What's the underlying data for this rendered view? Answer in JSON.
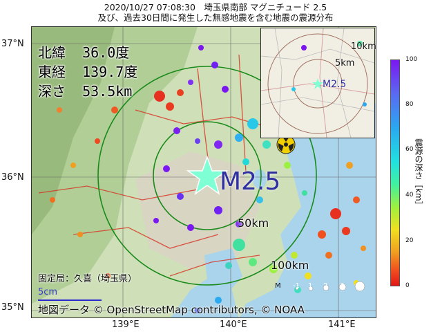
{
  "title": {
    "line1": "2020/10/27 07:08:30　埼玉県南部 マグニチュード 2.5",
    "line2": "及び、過去30日間に発生した無感地震を含む地震の震源分布"
  },
  "axes": {
    "lat_labels": [
      "37°N",
      "36°N",
      "35°N"
    ],
    "lon_labels": [
      "139°E",
      "140°E",
      "141°E"
    ]
  },
  "epicenter": {
    "lat_label": "北緯",
    "lat_value": "36.0度",
    "lon_label": "東経",
    "lon_value": "139.7度",
    "depth_label": "深さ",
    "depth_value": "53.5km",
    "magnitude": "M2.5"
  },
  "rings": {
    "r50": "50km",
    "r100": "100km"
  },
  "inset": {
    "r5": "5km",
    "r10": "10km",
    "magnitude": "M2.5"
  },
  "station": "固定局：久喜（埼玉県）",
  "scale_label": "5cm",
  "credit": "地図データ © OpenStreetMap contributors, © NOAA",
  "magnitude_legend": {
    "label": "M",
    "values": [
      "-1",
      "1",
      "2",
      "3",
      "4",
      "5"
    ]
  },
  "colorbar": {
    "title": "震源の深さ［km］",
    "ticks": [
      "100",
      "80",
      "60",
      "40",
      "20",
      "0"
    ]
  },
  "colors": {
    "star": "#7fffd4",
    "ring": "#1a8a1a",
    "magnitude_text": "#3030a0"
  }
}
